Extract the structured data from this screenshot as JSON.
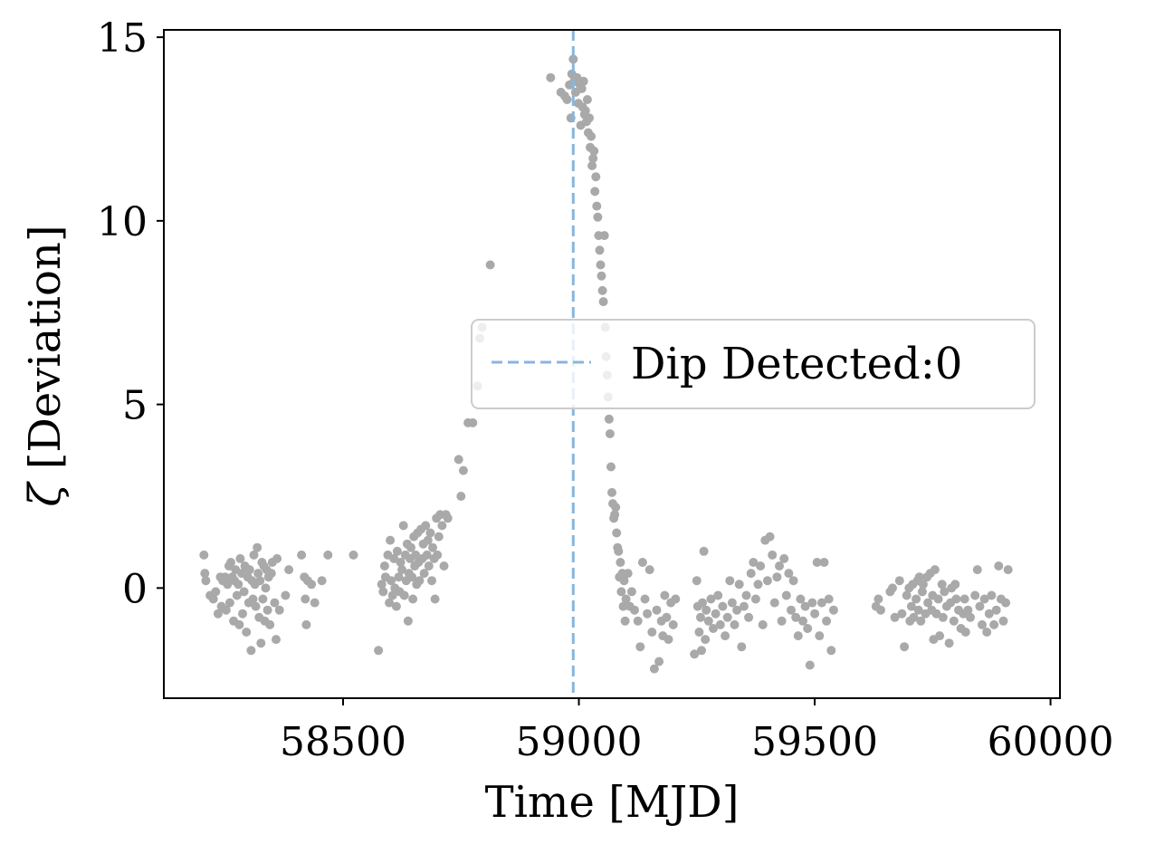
{
  "chart_data": {
    "type": "scatter",
    "title": "",
    "xlabel": "Time [MJD]",
    "ylabel_symbol": "ζ",
    "ylabel_text": " [Deviation]",
    "xlim": [
      58120,
      60020
    ],
    "ylim": [
      -3.0,
      15.2
    ],
    "xticks": [
      58500,
      59000,
      59500,
      60000
    ],
    "yticks": [
      0,
      5,
      10,
      15
    ],
    "xtick_labels": [
      "58500",
      "59000",
      "59500",
      "60000"
    ],
    "ytick_labels": [
      "0",
      "5",
      "10",
      "15"
    ],
    "grid": false,
    "legend": {
      "placement": "center-right",
      "label": "Dip Detected:0"
    },
    "vline": {
      "x": 58988,
      "style": "dashed",
      "color": "#87b6dd"
    },
    "colors": {
      "points": "#a9a9a9",
      "axes": "#000000"
    },
    "points": [
      [
        58205,
        0.9
      ],
      [
        58207,
        0.4
      ],
      [
        58209,
        0.2
      ],
      [
        58218,
        -0.2
      ],
      [
        58225,
        -0.3
      ],
      [
        58230,
        -0.1
      ],
      [
        58235,
        -0.7
      ],
      [
        58240,
        0.3
      ],
      [
        58242,
        -0.5
      ],
      [
        58245,
        0.2
      ],
      [
        58250,
        0.3
      ],
      [
        58252,
        -0.6
      ],
      [
        58255,
        0.1
      ],
      [
        58258,
        0.6
      ],
      [
        58260,
        -0.4
      ],
      [
        58262,
        0.7
      ],
      [
        58265,
        0.3
      ],
      [
        58268,
        -0.9
      ],
      [
        58270,
        0.2
      ],
      [
        58272,
        0.5
      ],
      [
        58275,
        -0.2
      ],
      [
        58278,
        0.1
      ],
      [
        58280,
        -1.0
      ],
      [
        58282,
        0.8
      ],
      [
        58285,
        0.4
      ],
      [
        58287,
        -0.7
      ],
      [
        58290,
        -0.1
      ],
      [
        58292,
        0.6
      ],
      [
        58295,
        -1.2
      ],
      [
        58298,
        0.3
      ],
      [
        58300,
        -0.4
      ],
      [
        58302,
        0.5
      ],
      [
        58305,
        -1.7
      ],
      [
        58307,
        0.2
      ],
      [
        58309,
        -0.3
      ],
      [
        58311,
        0.9
      ],
      [
        58313,
        0.1
      ],
      [
        58315,
        -0.5
      ],
      [
        58318,
        1.1
      ],
      [
        58320,
        0.4
      ],
      [
        58322,
        -0.8
      ],
      [
        58324,
        0.2
      ],
      [
        58326,
        -1.5
      ],
      [
        58328,
        0.7
      ],
      [
        58330,
        -0.3
      ],
      [
        58332,
        0.6
      ],
      [
        58334,
        -0.9
      ],
      [
        58336,
        0.0
      ],
      [
        58338,
        0.5
      ],
      [
        58340,
        -0.6
      ],
      [
        58342,
        0.3
      ],
      [
        58345,
        -1.0
      ],
      [
        58348,
        0.4
      ],
      [
        58350,
        0.7
      ],
      [
        58355,
        -0.4
      ],
      [
        58358,
        -1.4
      ],
      [
        58360,
        0.8
      ],
      [
        58365,
        -0.6
      ],
      [
        58378,
        -0.2
      ],
      [
        58385,
        0.5
      ],
      [
        58412,
        0.9
      ],
      [
        58418,
        0.3
      ],
      [
        58420,
        -0.3
      ],
      [
        58422,
        -1.0
      ],
      [
        58425,
        0.2
      ],
      [
        58433,
        0.1
      ],
      [
        58440,
        -0.4
      ],
      [
        58455,
        0.2
      ],
      [
        58468,
        0.9
      ],
      [
        58522,
        0.9
      ],
      [
        58575,
        -1.7
      ],
      [
        58582,
        0.1
      ],
      [
        58585,
        -0.1
      ],
      [
        58588,
        0.6
      ],
      [
        58590,
        0.3
      ],
      [
        58595,
        0.9
      ],
      [
        58598,
        -0.4
      ],
      [
        58600,
        1.3
      ],
      [
        58602,
        0.2
      ],
      [
        58605,
        -0.2
      ],
      [
        58608,
        0.8
      ],
      [
        58610,
        0.0
      ],
      [
        58613,
        -0.5
      ],
      [
        58615,
        1.0
      ],
      [
        58618,
        0.3
      ],
      [
        58620,
        -0.1
      ],
      [
        58622,
        0.7
      ],
      [
        58625,
        0.5
      ],
      [
        58628,
        1.7
      ],
      [
        58630,
        -0.2
      ],
      [
        58632,
        0.9
      ],
      [
        58634,
        0.2
      ],
      [
        58636,
        1.2
      ],
      [
        58638,
        -0.9
      ],
      [
        58640,
        0.4
      ],
      [
        58642,
        0.8
      ],
      [
        58644,
        1.1
      ],
      [
        58646,
        0.3
      ],
      [
        58648,
        -0.3
      ],
      [
        58650,
        1.4
      ],
      [
        58652,
        0.6
      ],
      [
        58654,
        0.9
      ],
      [
        58656,
        0.1
      ],
      [
        58658,
        1.5
      ],
      [
        58660,
        0.7
      ],
      [
        58662,
        0.2
      ],
      [
        58665,
        1.6
      ],
      [
        58668,
        0.8
      ],
      [
        58670,
        1.2
      ],
      [
        58672,
        0.4
      ],
      [
        58675,
        1.7
      ],
      [
        58678,
        0.9
      ],
      [
        58680,
        1.3
      ],
      [
        58682,
        0.6
      ],
      [
        58685,
        1.5
      ],
      [
        58688,
        0.2
      ],
      [
        58690,
        1.1
      ],
      [
        58693,
        0.8
      ],
      [
        58695,
        -0.3
      ],
      [
        58698,
        1.9
      ],
      [
        58700,
        0.9
      ],
      [
        58703,
        1.4
      ],
      [
        58706,
        2.0
      ],
      [
        58710,
        1.7
      ],
      [
        58714,
        0.6
      ],
      [
        58718,
        2.0
      ],
      [
        58722,
        1.9
      ],
      [
        58745,
        3.5
      ],
      [
        58750,
        2.5
      ],
      [
        58755,
        3.2
      ],
      [
        58765,
        4.5
      ],
      [
        58775,
        4.5
      ],
      [
        58785,
        5.5
      ],
      [
        58790,
        6.8
      ],
      [
        58795,
        7.1
      ],
      [
        58812,
        8.8
      ],
      [
        58940,
        13.9
      ],
      [
        58962,
        13.5
      ],
      [
        58970,
        13.4
      ],
      [
        58975,
        13.3
      ],
      [
        58980,
        13.7
      ],
      [
        58983,
        12.8
      ],
      [
        58985,
        14.0
      ],
      [
        58988,
        14.4
      ],
      [
        58990,
        13.8
      ],
      [
        58993,
        13.5
      ],
      [
        58996,
        13.9
      ],
      [
        58999,
        13.2
      ],
      [
        59002,
        13.7
      ],
      [
        59004,
        12.6
      ],
      [
        59006,
        13.6
      ],
      [
        59008,
        13.1
      ],
      [
        59010,
        13.8
      ],
      [
        59012,
        12.9
      ],
      [
        59014,
        13.0
      ],
      [
        59016,
        12.7
      ],
      [
        59018,
        13.3
      ],
      [
        59020,
        12.4
      ],
      [
        59022,
        12.8
      ],
      [
        59024,
        12.0
      ],
      [
        59026,
        12.3
      ],
      [
        59028,
        11.5
      ],
      [
        59030,
        11.7
      ],
      [
        59032,
        11.9
      ],
      [
        59034,
        10.8
      ],
      [
        59036,
        11.2
      ],
      [
        59038,
        10.4
      ],
      [
        59040,
        10.1
      ],
      [
        59042,
        9.6
      ],
      [
        59044,
        9.2
      ],
      [
        59046,
        8.8
      ],
      [
        59048,
        8.5
      ],
      [
        59050,
        8.1
      ],
      [
        59052,
        7.8
      ],
      [
        59054,
        9.6
      ],
      [
        59056,
        7.1
      ],
      [
        59058,
        6.3
      ],
      [
        59060,
        5.8
      ],
      [
        59062,
        5.2
      ],
      [
        59064,
        4.6
      ],
      [
        59066,
        4.2
      ],
      [
        59068,
        3.3
      ],
      [
        59070,
        2.6
      ],
      [
        59072,
        2.3
      ],
      [
        59074,
        1.9
      ],
      [
        59076,
        2.0
      ],
      [
        59078,
        2.2
      ],
      [
        59080,
        1.5
      ],
      [
        59082,
        1.1
      ],
      [
        59084,
        1.0
      ],
      [
        59086,
        0.3
      ],
      [
        59088,
        0.7
      ],
      [
        59090,
        -0.1
      ],
      [
        59092,
        0.4
      ],
      [
        59094,
        -0.5
      ],
      [
        59096,
        0.2
      ],
      [
        59098,
        -0.9
      ],
      [
        59100,
        -0.3
      ],
      [
        59104,
        0.4
      ],
      [
        59108,
        -0.5
      ],
      [
        59112,
        -0.1
      ],
      [
        59118,
        -0.6
      ],
      [
        59125,
        -0.9
      ],
      [
        59130,
        -1.6
      ],
      [
        59135,
        0.7
      ],
      [
        59140,
        -0.3
      ],
      [
        59145,
        -0.7
      ],
      [
        59150,
        0.5
      ],
      [
        59155,
        -1.2
      ],
      [
        59160,
        -2.2
      ],
      [
        59165,
        -0.6
      ],
      [
        59170,
        -2.0
      ],
      [
        59175,
        -0.9
      ],
      [
        59178,
        -1.3
      ],
      [
        59182,
        -0.2
      ],
      [
        59186,
        -0.8
      ],
      [
        59190,
        -1.4
      ],
      [
        59195,
        -0.4
      ],
      [
        59200,
        -1.0
      ],
      [
        59205,
        -0.3
      ],
      [
        59245,
        -1.8
      ],
      [
        59250,
        0.2
      ],
      [
        59252,
        -0.5
      ],
      [
        59255,
        -1.2
      ],
      [
        59258,
        -0.8
      ],
      [
        59260,
        -1.7
      ],
      [
        59262,
        -0.4
      ],
      [
        59265,
        1.0
      ],
      [
        59268,
        -1.4
      ],
      [
        59270,
        -0.6
      ],
      [
        59275,
        -0.9
      ],
      [
        59280,
        -0.3
      ],
      [
        59285,
        -1.1
      ],
      [
        59290,
        -0.7
      ],
      [
        59295,
        -0.2
      ],
      [
        59300,
        -1.0
      ],
      [
        59305,
        -0.5
      ],
      [
        59310,
        -1.3
      ],
      [
        59315,
        -0.8
      ],
      [
        59320,
        0.2
      ],
      [
        59325,
        -0.4
      ],
      [
        59330,
        -1.0
      ],
      [
        59335,
        -0.6
      ],
      [
        59340,
        0.1
      ],
      [
        59345,
        -1.6
      ],
      [
        59350,
        -0.5
      ],
      [
        59355,
        -0.2
      ],
      [
        59360,
        -0.8
      ],
      [
        59365,
        0.4
      ],
      [
        59370,
        0.7
      ],
      [
        59375,
        -0.3
      ],
      [
        59380,
        0.1
      ],
      [
        59385,
        0.6
      ],
      [
        59390,
        -1.0
      ],
      [
        59395,
        1.3
      ],
      [
        59400,
        0.2
      ],
      [
        59405,
        1.4
      ],
      [
        59410,
        0.9
      ],
      [
        59415,
        -0.4
      ],
      [
        59420,
        0.3
      ],
      [
        59425,
        0.6
      ],
      [
        59430,
        -0.9
      ],
      [
        59435,
        0.8
      ],
      [
        59440,
        -0.2
      ],
      [
        59445,
        0.4
      ],
      [
        59450,
        -0.6
      ],
      [
        59455,
        0.2
      ],
      [
        59460,
        -0.8
      ],
      [
        59465,
        -1.3
      ],
      [
        59470,
        -0.3
      ],
      [
        59475,
        -0.9
      ],
      [
        59480,
        -0.5
      ],
      [
        59485,
        -1.1
      ],
      [
        59490,
        -2.1
      ],
      [
        59495,
        -0.4
      ],
      [
        59500,
        -0.7
      ],
      [
        59505,
        0.7
      ],
      [
        59510,
        -1.3
      ],
      [
        59515,
        -0.4
      ],
      [
        59520,
        0.7
      ],
      [
        59525,
        -0.9
      ],
      [
        59530,
        -0.3
      ],
      [
        59535,
        -1.7
      ],
      [
        59540,
        -0.6
      ],
      [
        59630,
        -0.5
      ],
      [
        59635,
        -0.3
      ],
      [
        59640,
        -0.6
      ],
      [
        59660,
        -0.1
      ],
      [
        59665,
        0.0
      ],
      [
        59670,
        -0.8
      ],
      [
        59680,
        0.2
      ],
      [
        59685,
        -0.7
      ],
      [
        59690,
        -1.6
      ],
      [
        59695,
        -0.2
      ],
      [
        59700,
        0.0
      ],
      [
        59702,
        -0.9
      ],
      [
        59705,
        -0.5
      ],
      [
        59708,
        0.1
      ],
      [
        59710,
        -0.8
      ],
      [
        59715,
        -0.3
      ],
      [
        59718,
        0.2
      ],
      [
        59720,
        -0.6
      ],
      [
        59722,
        0.3
      ],
      [
        59725,
        -0.9
      ],
      [
        59728,
        -0.1
      ],
      [
        59730,
        0.1
      ],
      [
        59735,
        -0.7
      ],
      [
        59738,
        0.3
      ],
      [
        59740,
        -0.4
      ],
      [
        59745,
        0.4
      ],
      [
        59748,
        -0.6
      ],
      [
        59750,
        -0.2
      ],
      [
        59752,
        -1.4
      ],
      [
        59755,
        0.5
      ],
      [
        59758,
        -0.7
      ],
      [
        59762,
        -0.3
      ],
      [
        59765,
        -1.3
      ],
      [
        59770,
        0.1
      ],
      [
        59772,
        -0.8
      ],
      [
        59775,
        -0.1
      ],
      [
        59780,
        -0.5
      ],
      [
        59785,
        -1.5
      ],
      [
        59788,
        -0.4
      ],
      [
        59790,
        0.0
      ],
      [
        59795,
        -0.9
      ],
      [
        59798,
        0.1
      ],
      [
        59800,
        -0.3
      ],
      [
        59805,
        -0.6
      ],
      [
        59810,
        -1.1
      ],
      [
        59815,
        -0.7
      ],
      [
        59818,
        -0.3
      ],
      [
        59820,
        -1.2
      ],
      [
        59825,
        -0.6
      ],
      [
        59830,
        -0.8
      ],
      [
        59840,
        -0.2
      ],
      [
        59845,
        0.5
      ],
      [
        59850,
        -0.5
      ],
      [
        59855,
        -1.0
      ],
      [
        59860,
        -0.3
      ],
      [
        59865,
        -1.2
      ],
      [
        59870,
        -0.7
      ],
      [
        59875,
        -0.2
      ],
      [
        59880,
        -1.0
      ],
      [
        59885,
        -0.6
      ],
      [
        59890,
        0.6
      ],
      [
        59895,
        -0.3
      ],
      [
        59900,
        -0.9
      ],
      [
        59905,
        -0.4
      ],
      [
        59910,
        0.5
      ]
    ]
  }
}
